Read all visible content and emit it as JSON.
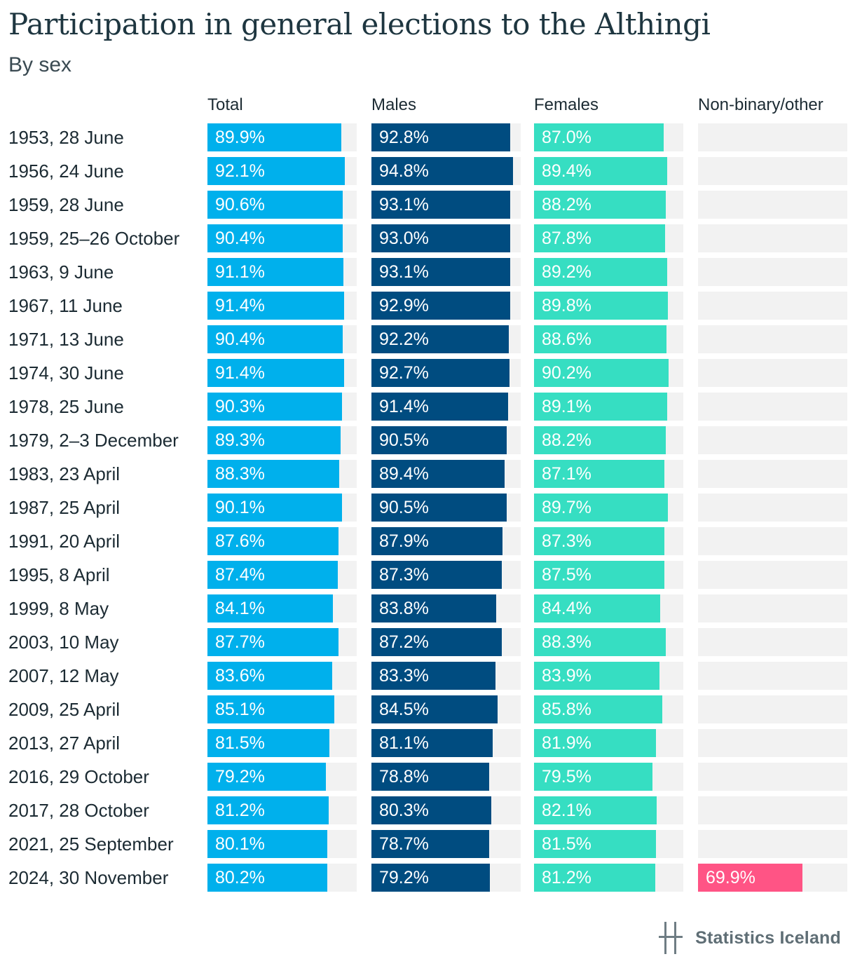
{
  "title": "Participation in general elections to the Althingi",
  "subtitle": "By sex",
  "logo_text": "Statistics Iceland",
  "colors": {
    "total": "#00b0ec",
    "males": "#004c80",
    "females": "#36dec2",
    "other": "#ff5485",
    "track": "#f2f2f2"
  },
  "chart_data": {
    "type": "bar",
    "title": "Participation in general elections to the Althingi",
    "subtitle": "By sex",
    "orientation": "horizontal",
    "value_format": "percent",
    "columns": [
      "Total",
      "Males",
      "Females",
      "Non-binary/other"
    ],
    "categories": [
      "1953, 28 June",
      "1956, 24 June",
      "1959, 28 June",
      "1959, 25–26 October",
      "1963, 9 June",
      "1967, 11 June",
      "1971, 13 June",
      "1974, 30 June",
      "1978, 25 June",
      "1979, 2–3 December",
      "1983, 23 April",
      "1987, 25 April",
      "1991, 20 April",
      "1995, 8 April",
      "1999, 8 May",
      "2003, 10 May",
      "2007, 12 May",
      "2009, 25 April",
      "2013, 27 April",
      "2016, 29 October",
      "2017, 28 October",
      "2021, 25 September",
      "2024, 30 November"
    ],
    "series": [
      {
        "name": "Total",
        "color": "#00b0ec",
        "values": [
          89.9,
          92.1,
          90.6,
          90.4,
          91.1,
          91.4,
          90.4,
          91.4,
          90.3,
          89.3,
          88.3,
          90.1,
          87.6,
          87.4,
          84.1,
          87.7,
          83.6,
          85.1,
          81.5,
          79.2,
          81.2,
          80.1,
          80.2
        ]
      },
      {
        "name": "Males",
        "color": "#004c80",
        "values": [
          92.8,
          94.8,
          93.1,
          93.0,
          93.1,
          92.9,
          92.2,
          92.7,
          91.4,
          90.5,
          89.4,
          90.5,
          87.9,
          87.3,
          83.8,
          87.2,
          83.3,
          84.5,
          81.1,
          78.8,
          80.3,
          78.7,
          79.2
        ]
      },
      {
        "name": "Females",
        "color": "#36dec2",
        "values": [
          87.0,
          89.4,
          88.2,
          87.8,
          89.2,
          89.8,
          88.6,
          90.2,
          89.1,
          88.2,
          87.1,
          89.7,
          87.3,
          87.5,
          84.4,
          88.3,
          83.9,
          85.8,
          81.9,
          79.5,
          82.1,
          81.5,
          81.2
        ]
      },
      {
        "name": "Non-binary/other",
        "color": "#ff5485",
        "values": [
          null,
          null,
          null,
          null,
          null,
          null,
          null,
          null,
          null,
          null,
          null,
          null,
          null,
          null,
          null,
          null,
          null,
          null,
          null,
          null,
          null,
          null,
          69.9
        ]
      }
    ],
    "value_labels": {
      "Total": [
        "89.9%",
        "92.1%",
        "90.6%",
        "90.4%",
        "91.1%",
        "91.4%",
        "90.4%",
        "91.4%",
        "90.3%",
        "89.3%",
        "88.3%",
        "90.1%",
        "87.6%",
        "87.4%",
        "84.1%",
        "87.7%",
        "83.6%",
        "85.1%",
        "81.5%",
        "79.2%",
        "81.2%",
        "80.1%",
        "80.2%"
      ],
      "Males": [
        "92.8%",
        "94.8%",
        "93.1%",
        "93.0%",
        "93.1%",
        "92.9%",
        "92.2%",
        "92.7%",
        "91.4%",
        "90.5%",
        "89.4%",
        "90.5%",
        "87.9%",
        "87.3%",
        "83.8%",
        "87.2%",
        "83.3%",
        "84.5%",
        "81.1%",
        "78.8%",
        "80.3%",
        "78.7%",
        "79.2%"
      ],
      "Females": [
        "87.0%",
        "89.4%",
        "88.2%",
        "87.8%",
        "89.2%",
        "89.8%",
        "88.6%",
        "90.2%",
        "89.1%",
        "88.2%",
        "87.1%",
        "89.7%",
        "87.3%",
        "87.5%",
        "84.4%",
        "88.3%",
        "83.9%",
        "85.8%",
        "81.9%",
        "79.5%",
        "82.1%",
        "81.5%",
        "81.2%"
      ],
      "Non-binary/other": [
        "",
        "",
        "",
        "",
        "",
        "",
        "",
        "",
        "",
        "",
        "",
        "",
        "",
        "",
        "",
        "",
        "",
        "",
        "",
        "",
        "",
        "",
        "69.9%"
      ]
    },
    "xlim": [
      0,
      100
    ],
    "grid": false,
    "legend": "none"
  }
}
